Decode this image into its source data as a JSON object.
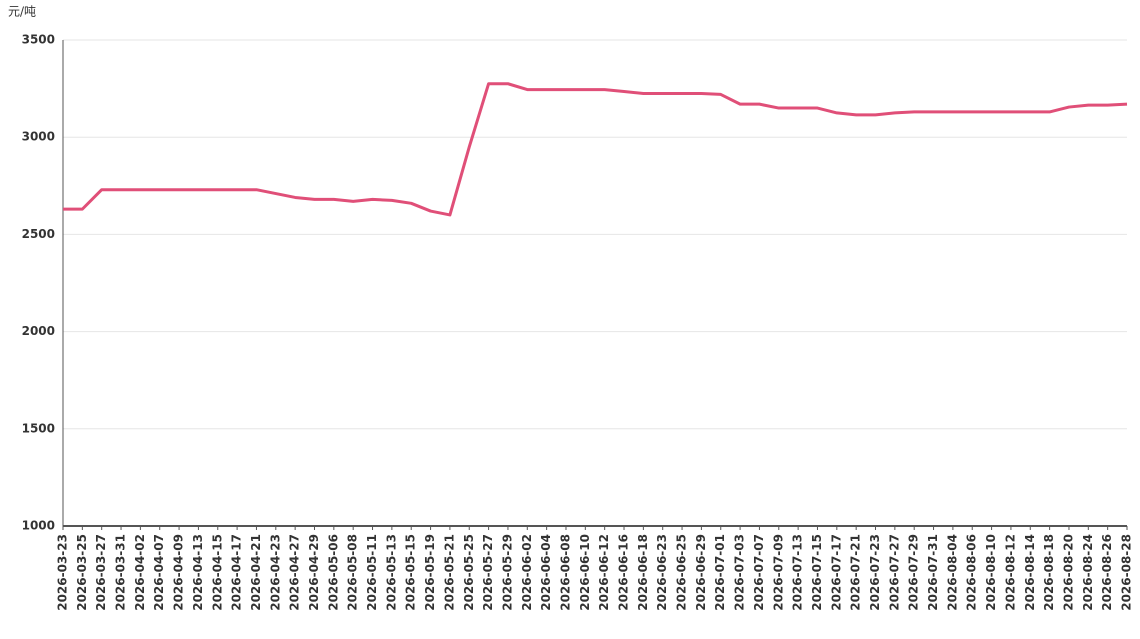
{
  "chart_data": {
    "type": "line",
    "y_label": "元/吨",
    "categories": [
      "2026-03-23",
      "2026-03-25",
      "2026-03-27",
      "2026-03-31",
      "2026-04-02",
      "2026-04-07",
      "2026-04-09",
      "2026-04-13",
      "2026-04-15",
      "2026-04-17",
      "2026-04-21",
      "2026-04-23",
      "2026-04-27",
      "2026-04-29",
      "2026-05-06",
      "2026-05-08",
      "2026-05-11",
      "2026-05-13",
      "2026-05-15",
      "2026-05-19",
      "2026-05-21",
      "2026-05-25",
      "2026-05-27",
      "2026-05-29",
      "2026-06-02",
      "2026-06-04",
      "2026-06-08",
      "2026-06-10",
      "2026-06-12",
      "2026-06-16",
      "2026-06-18",
      "2026-06-23",
      "2026-06-25",
      "2026-06-29",
      "2026-07-01",
      "2026-07-03",
      "2026-07-07",
      "2026-07-09",
      "2026-07-13",
      "2026-07-15",
      "2026-07-17",
      "2026-07-21",
      "2026-07-23",
      "2026-07-27",
      "2026-07-29",
      "2026-07-31",
      "2026-08-04",
      "2026-08-06",
      "2026-08-10",
      "2026-08-12",
      "2026-08-14",
      "2026-08-18",
      "2026-08-20",
      "2026-08-24",
      "2026-08-26",
      "2026-08-28"
    ],
    "series": [
      {
        "color": "#e04f78",
        "values": [
          2630,
          2630,
          2730,
          2730,
          2730,
          2730,
          2730,
          2730,
          2730,
          2730,
          2730,
          2710,
          2690,
          2680,
          2680,
          2670,
          2680,
          2675,
          2660,
          2620,
          2600,
          2950,
          3275,
          3275,
          3245,
          3245,
          3245,
          3245,
          3245,
          3235,
          3225,
          3225,
          3225,
          3225,
          3220,
          3170,
          3170,
          3150,
          3150,
          3150,
          3125,
          3115,
          3115,
          3125,
          3130,
          3130,
          3130,
          3130,
          3130,
          3130,
          3130,
          3130,
          3155,
          3165,
          3165,
          3170
        ]
      }
    ],
    "ylim": [
      1000,
      3500
    ],
    "yticks": [
      1000,
      1500,
      2000,
      2500,
      3000,
      3500
    ],
    "grid": true
  }
}
